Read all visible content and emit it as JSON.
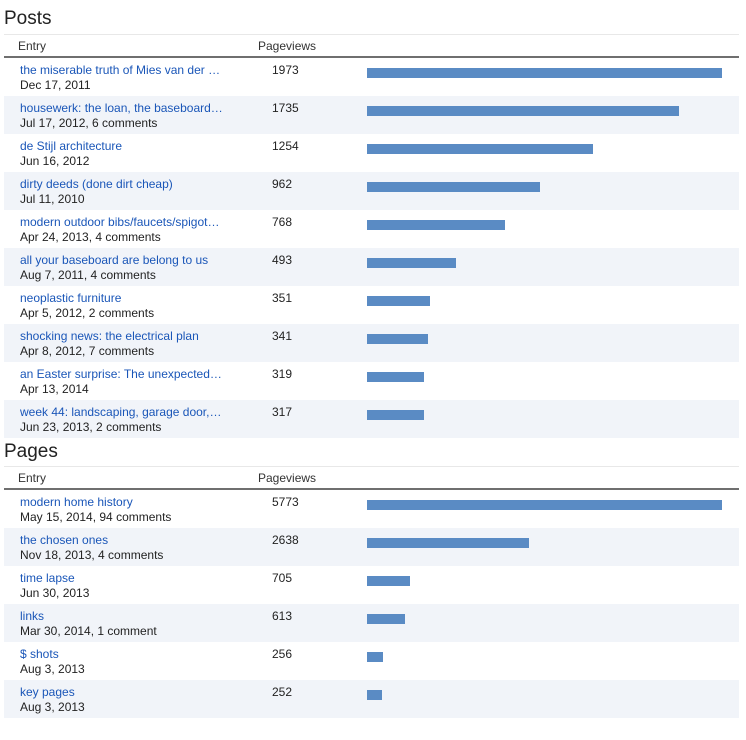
{
  "colors": {
    "link": "#1a56b8",
    "bar": "#5a8bc4",
    "alt_row": "#f1f4f9"
  },
  "bar_max_value": 1973,
  "posts": {
    "title": "Posts",
    "header_entry": "Entry",
    "header_views": "Pageviews",
    "rows": [
      {
        "title": "the miserable truth of Mies van der …",
        "sub": "Dec 17, 2011",
        "views": "1973",
        "value": 1973
      },
      {
        "title": "housewerk: the loan, the baseboard…",
        "sub": "Jul 17, 2012, 6 comments",
        "views": "1735",
        "value": 1735
      },
      {
        "title": "de Stijl architecture",
        "sub": "Jun 16, 2012",
        "views": "1254",
        "value": 1254
      },
      {
        "title": "dirty deeds (done dirt cheap)",
        "sub": "Jul 11, 2010",
        "views": "962",
        "value": 962
      },
      {
        "title": "modern outdoor bibs/faucets/spigot…",
        "sub": "Apr 24, 2013, 4 comments",
        "views": "768",
        "value": 768
      },
      {
        "title": "all your baseboard are belong to us",
        "sub": "Aug 7, 2011, 4 comments",
        "views": "493",
        "value": 493
      },
      {
        "title": "neoplastic furniture",
        "sub": "Apr 5, 2012, 2 comments",
        "views": "351",
        "value": 351
      },
      {
        "title": "shocking news: the electrical plan",
        "sub": "Apr 8, 2012, 7 comments",
        "views": "341",
        "value": 341
      },
      {
        "title": "an Easter surprise: The unexpected…",
        "sub": "Apr 13, 2014",
        "views": "319",
        "value": 319
      },
      {
        "title": "week 44: landscaping, garage door,…",
        "sub": "Jun 23, 2013, 2 comments",
        "views": "317",
        "value": 317
      }
    ]
  },
  "pages": {
    "title": "Pages",
    "header_entry": "Entry",
    "header_views": "Pageviews",
    "max_value": 5773,
    "rows": [
      {
        "title": "modern home history",
        "sub": "May 15, 2014, 94 comments",
        "views": "5773",
        "value": 5773
      },
      {
        "title": "the chosen ones",
        "sub": "Nov 18, 2013, 4 comments",
        "views": "2638",
        "value": 2638
      },
      {
        "title": "time lapse",
        "sub": "Jun 30, 2013",
        "views": "705",
        "value": 705
      },
      {
        "title": "links",
        "sub": "Mar 30, 2014, 1 comment",
        "views": "613",
        "value": 613
      },
      {
        "title": "$ shots",
        "sub": "Aug 3, 2013",
        "views": "256",
        "value": 256
      },
      {
        "title": "key pages",
        "sub": "Aug 3, 2013",
        "views": "252",
        "value": 252
      }
    ]
  }
}
